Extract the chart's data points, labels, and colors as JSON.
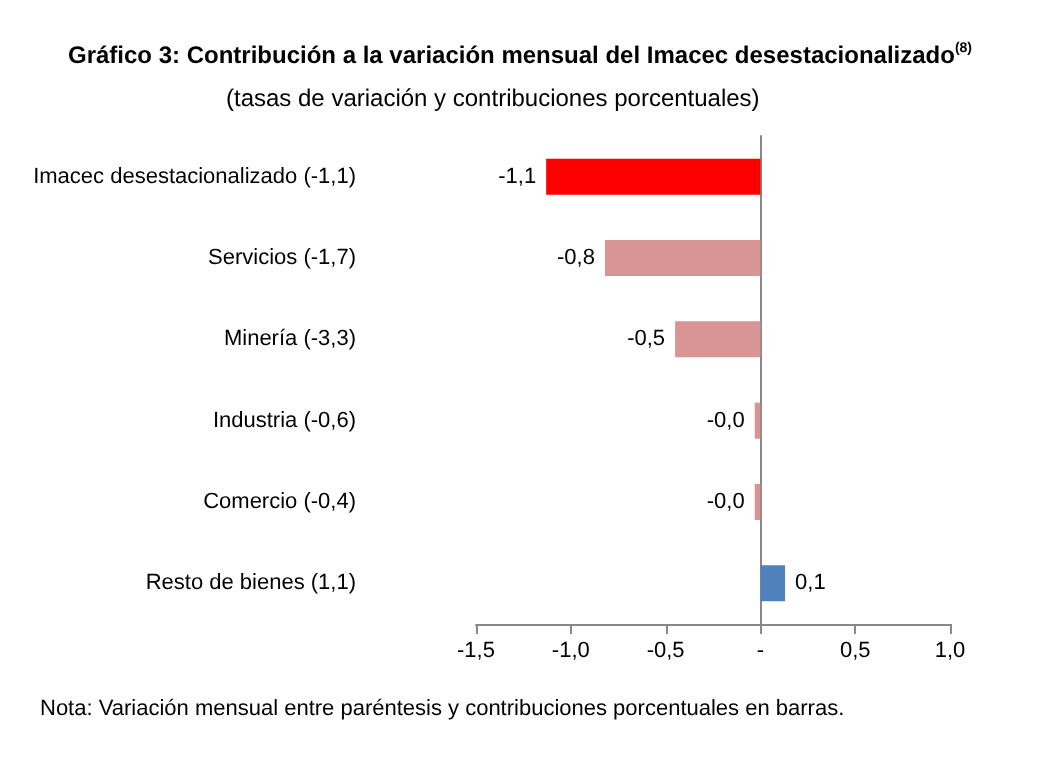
{
  "chart_data": {
    "type": "bar",
    "orientation": "horizontal",
    "title": "Gráfico 3: Contribución a la variación mensual del Imacec desestacionalizado$^{(8)}$",
    "subtitle": "(tasas de variación y contribuciones porcentuales)",
    "categories": [
      "Imacec desestacionalizado (-1,1)",
      "Servicios (-1,7)",
      "Minería (-3,3)",
      "Industria (-0,6)",
      "Comercio (-0,4)",
      "Resto de bienes (1,1)"
    ],
    "values": [
      -1.13,
      -0.82,
      -0.45,
      -0.03,
      -0.03,
      0.13
    ],
    "value_labels": [
      "-1,1",
      "-0,8",
      "-0,5",
      "-0,0",
      "-0,0",
      "0,1"
    ],
    "colors": [
      "#ff0000",
      "#d99594",
      "#d99594",
      "#d99594",
      "#d99594",
      "#4f81bd"
    ],
    "xlim": [
      -1.5,
      1
    ],
    "xticks": [
      {
        "value": -1.5,
        "label": "-1,5"
      },
      {
        "value": -1,
        "label": "-1,0"
      },
      {
        "value": -0.5,
        "label": "-0,5"
      },
      {
        "value": 0,
        "label": "-"
      },
      {
        "value": 0.5,
        "label": "0,5"
      },
      {
        "value": 1,
        "label": "1,0"
      }
    ],
    "annotations": [
      "Nota: Variación mensual entre paréntesis y contribuciones porcentuales en barras."
    ]
  }
}
